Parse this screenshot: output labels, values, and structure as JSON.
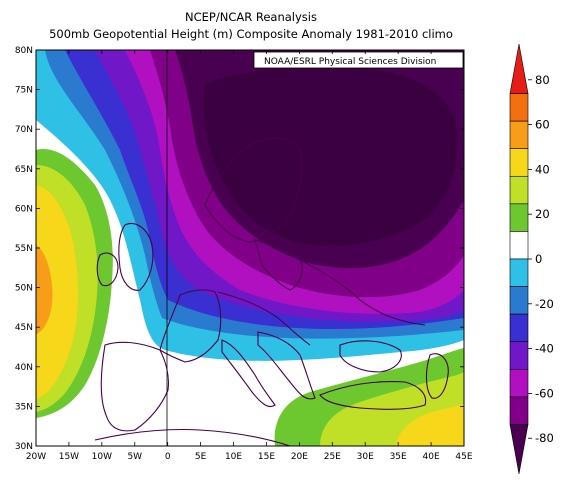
{
  "title": {
    "line1": "NCEP/NCAR Reanalysis",
    "line2": "500mb Geopotential Height (m) Composite Anomaly 1981-2010 climo"
  },
  "credit": "NOAA/ESRL Physical Sciences Division",
  "map": {
    "lon_range": [
      -20,
      45
    ],
    "lat_range": [
      30,
      80
    ],
    "lon_labels": [
      "20W",
      "15W",
      "10W",
      "5W",
      "0",
      "5E",
      "10E",
      "15E",
      "20E",
      "25E",
      "30E",
      "35E",
      "40E",
      "45E"
    ],
    "lat_labels": [
      "80N",
      "75N",
      "70N",
      "65N",
      "60N",
      "55N",
      "50N",
      "45N",
      "40N",
      "35N",
      "30N"
    ],
    "anomaly_centers": [
      {
        "name": "negative-anomaly-center",
        "lon": 30,
        "lat": 65,
        "value_m": -80
      },
      {
        "name": "positive-anomaly-center",
        "lon": -20,
        "lat": 50,
        "value_m": 45
      }
    ]
  },
  "colorbar": {
    "ticks": [
      "80",
      "60",
      "40",
      "20",
      "0",
      "-20",
      "-40",
      "-60",
      "-80"
    ],
    "colors": [
      "#e61c17",
      "#f2700f",
      "#f79d17",
      "#f7d71a",
      "#bfe027",
      "#6cc82e",
      "#ffffff",
      "#2fc0e6",
      "#2a7bd0",
      "#3a2fd0",
      "#7018c8",
      "#b010c0",
      "#800088",
      "#4a0050"
    ]
  }
}
